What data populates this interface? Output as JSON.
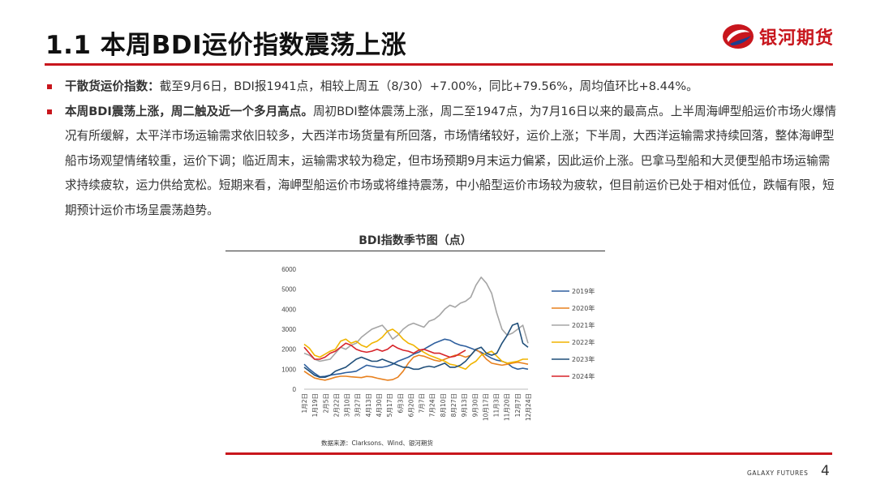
{
  "header": {
    "title": "1.1 本周BDI运价指数震荡上涨",
    "brand_name": "银河期货"
  },
  "bullets": [
    {
      "lead": "干散货运价指数：",
      "text": "截至9月6日，BDI报1941点，相较上周五（8/30）+7.00%，同比+79.56%，周均值环比+8.44%。"
    },
    {
      "lead": "本周BDI震荡上涨，周二触及近一个多月高点。",
      "text": "周初BDI整体震荡上涨，周二至1947点，为7月16日以来的最高点。上半周海岬型船运价市场火爆情况有所缓解，太平洋市场运输需求依旧较多，大西洋市场货量有所回落，市场情绪较好，运价上涨；下半周，大西洋运输需求持续回落，整体海岬型船市场观望情绪较重，运价下调；临近周末，运输需求较为稳定，但市场预期9月末运力偏紧，因此运价上涨。巴拿马型船和大灵便型船市场运输需求持续疲软，运力供给宽松。短期来看，海岬型船运价市场或将维持震荡，中小船型运价市场较为疲软，但目前运价已处于相对低位，跌幅有限，短期预计运价市场呈震荡趋势。"
    }
  ],
  "chart_data": {
    "type": "line",
    "title": "BDI指数季节图（点）",
    "source": "数据来源：Clarksons、Wind、银河期货",
    "ylim": [
      0,
      6000
    ],
    "yticks": [
      0,
      1000,
      2000,
      3000,
      4000,
      5000,
      6000
    ],
    "x_tick_labels": [
      "1月2日",
      "1月19日",
      "2月5日",
      "2月22日",
      "3月10日",
      "3月27日",
      "4月13日",
      "4月30日",
      "5月17日",
      "6月3日",
      "6月20日",
      "7月7日",
      "7月24日",
      "8月10日",
      "8月27日",
      "9月13日",
      "9月30日",
      "10月17日",
      "11月3日",
      "11月20日",
      "12月7日",
      "12月24日"
    ],
    "grid": false,
    "legend_position": "right",
    "series": [
      {
        "name": "2019年",
        "color": "#2e5f9e",
        "values": [
          1250,
          1000,
          800,
          620,
          640,
          700,
          740,
          780,
          830,
          860,
          900,
          1050,
          1200,
          1150,
          1100,
          1100,
          1150,
          1250,
          1400,
          1500,
          1600,
          1750,
          1850,
          2000,
          2150,
          2300,
          2400,
          2500,
          2450,
          2300,
          2200,
          2150,
          2050,
          1950,
          1850,
          1700,
          1550,
          1450,
          1400,
          1300,
          1100,
          1000,
          1050,
          1000
        ]
      },
      {
        "name": "2020年",
        "color": "#e8811f",
        "values": [
          900,
          720,
          560,
          500,
          450,
          520,
          600,
          650,
          650,
          620,
          600,
          580,
          640,
          620,
          550,
          500,
          450,
          480,
          600,
          900,
          1300,
          1600,
          1700,
          1650,
          1550,
          1450,
          1400,
          1500,
          1600,
          1700,
          1700,
          1600,
          1700,
          2000,
          1800,
          1500,
          1300,
          1250,
          1200,
          1250,
          1300,
          1350,
          1300,
          1250
        ]
      },
      {
        "name": "2021年",
        "color": "#a5a5a5",
        "values": [
          1800,
          1700,
          1500,
          1400,
          1450,
          1500,
          1800,
          2100,
          2000,
          2200,
          2300,
          2600,
          2800,
          3000,
          3100,
          3200,
          2900,
          2500,
          2700,
          3000,
          3200,
          3300,
          3200,
          3100,
          3400,
          3500,
          3700,
          4000,
          4200,
          4100,
          4300,
          4400,
          4600,
          5200,
          5600,
          5300,
          4800,
          3800,
          3000,
          2700,
          2800,
          3000,
          3200,
          2300
        ]
      },
      {
        "name": "2022年",
        "color": "#f0b400",
        "values": [
          2250,
          2050,
          1700,
          1600,
          1750,
          1900,
          2000,
          2400,
          2500,
          2300,
          2400,
          2200,
          2100,
          2300,
          2400,
          2600,
          2900,
          3000,
          2800,
          2500,
          2300,
          2200,
          2000,
          1850,
          1700,
          1600,
          1500,
          1400,
          1250,
          1200,
          1100,
          1000,
          1250,
          1400,
          1700,
          1800,
          1900,
          1650,
          1400,
          1300,
          1350,
          1400,
          1500,
          1500
        ]
      },
      {
        "name": "2023年",
        "color": "#1f4e79",
        "values": [
          1100,
          900,
          700,
          600,
          600,
          700,
          900,
          1000,
          1100,
          1300,
          1500,
          1600,
          1500,
          1400,
          1400,
          1500,
          1400,
          1300,
          1200,
          1100,
          1100,
          1000,
          1000,
          1100,
          1150,
          1100,
          1200,
          1300,
          1100,
          1100,
          1200,
          1400,
          1700,
          2000,
          2100,
          1800,
          1700,
          1800,
          2300,
          2700,
          3200,
          3300,
          2300,
          2100
        ]
      },
      {
        "name": "2024年",
        "color": "#d7242a",
        "values": [
          2100,
          1800,
          1500,
          1500,
          1600,
          1800,
          1900,
          2100,
          2300,
          2200,
          2000,
          1900,
          1850,
          1900,
          2000,
          1900,
          2000,
          2200,
          2050,
          1950,
          1900,
          1800,
          1950,
          2000,
          1900,
          1800,
          1800,
          1700,
          1600,
          1650,
          1800,
          1950
        ]
      }
    ]
  },
  "footer": {
    "brand": "GALAXY FUTURES",
    "page": "4"
  }
}
